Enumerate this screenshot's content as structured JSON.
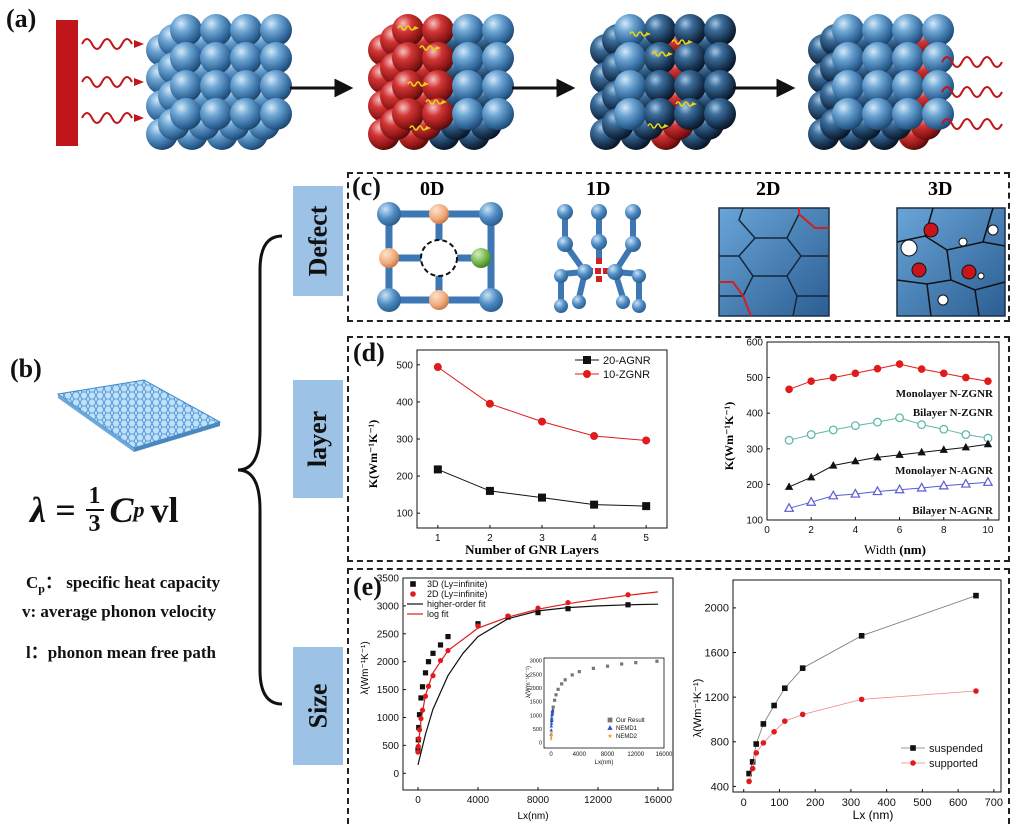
{
  "panels": {
    "a": "(a)",
    "b": "(b)",
    "c": "(c)",
    "d": "(d)",
    "e": "(e)"
  },
  "colors": {
    "heat_red": "#c0161b",
    "sphere_blue": "#3f7fb6",
    "sphere_red": "#c42a2a",
    "tag_blue": "#9cc3e6",
    "wave_yellow": "#e7d21a",
    "node_orange": "#f0a878",
    "node_green": "#6cb043"
  },
  "side_tags": {
    "defect": "Defect",
    "layer": "layer",
    "size": "Size"
  },
  "panel_b": {
    "formula_lhs": "λ =",
    "formula_num": "1",
    "formula_den": "3",
    "formula_c": "C",
    "formula_sub": "p",
    "formula_rest": "vl",
    "cp_main": "C",
    "cp_sub": "p",
    "cp_text": "： specific heat capacity",
    "v_def": "v: average phonon velocity",
    "l_def": "l：phonon mean free path"
  },
  "panel_c": {
    "labels": [
      "0D",
      "1D",
      "2D",
      "3D"
    ]
  },
  "panel_d_left": {
    "xlabel": "Number of GNR Layers",
    "ylabel": "K(Wm⁻¹K⁻¹)",
    "x_ticks": [
      "1",
      "2",
      "3",
      "4",
      "5"
    ],
    "y_ticks": [
      "100",
      "200",
      "300",
      "400",
      "500"
    ],
    "legend": [
      "20-AGNR",
      "10-ZGNR"
    ]
  },
  "panel_d_right": {
    "xlabel_main": "Width ",
    "xlabel_unit": "(nm)",
    "ylabel": "K(Wm⁻¹K⁻¹)",
    "x_ticks": [
      "0",
      "2",
      "4",
      "6",
      "8",
      "10"
    ],
    "y_ticks": [
      "100",
      "200",
      "300",
      "400",
      "500",
      "600"
    ],
    "labels": [
      "Monolayer N-ZGNR",
      "Bilayer N-ZGNR",
      "Monolayer N-AGNR",
      "Bilayer N-AGNR"
    ]
  },
  "panel_e_left": {
    "xlabel": "Lx(nm)",
    "ylabel": "λ(Wm⁻¹K⁻¹)",
    "x_ticks": [
      "0",
      "4000",
      "8000",
      "12000",
      "16000"
    ],
    "y_ticks": [
      "0",
      "500",
      "1000",
      "1500",
      "2000",
      "2500",
      "3000",
      "3500"
    ],
    "legend": [
      "3D (Ly=infinite)",
      "2D (Ly=infinite)",
      "higher-order fit",
      "log fit"
    ],
    "inset": {
      "xlabel": "Lx(nm)",
      "ylabel": "λ(Wm⁻¹K⁻¹)",
      "x_ticks": [
        "0",
        "4000",
        "8000",
        "12000",
        "16000"
      ],
      "y_ticks": [
        "0",
        "500",
        "1000",
        "1500",
        "2000",
        "2500",
        "3000"
      ],
      "legend": [
        "Our Result",
        "NEMD1",
        "NEMD2"
      ]
    }
  },
  "panel_e_right": {
    "xlabel": "Lx (nm)",
    "ylabel": "λ(Wm⁻¹K⁻¹)",
    "x_ticks": [
      "0",
      "100",
      "200",
      "300",
      "400",
      "500",
      "600",
      "700"
    ],
    "y_ticks": [
      "400",
      "800",
      "1200",
      "1600",
      "2000"
    ],
    "legend": [
      "suspended",
      "supported"
    ]
  },
  "chart_data": [
    {
      "type": "line",
      "panel": "d-left",
      "xlabel": "Number of GNR Layers",
      "ylabel": "K(Wm-1K-1)",
      "xlim": [
        0.6,
        5.4
      ],
      "ylim": [
        60,
        540
      ],
      "x": [
        1,
        2,
        3,
        4,
        5
      ],
      "series": [
        {
          "name": "20-AGNR",
          "marker": "square",
          "color": "#111111",
          "values": [
            218,
            160,
            142,
            123,
            119
          ]
        },
        {
          "name": "10-ZGNR",
          "marker": "circle",
          "color": "#e01b1b",
          "values": [
            494,
            395,
            347,
            308,
            296
          ]
        }
      ],
      "legend": "top-right"
    },
    {
      "type": "line",
      "panel": "d-right",
      "xlabel": "Width (nm)",
      "ylabel": "K(Wm-1K-1)",
      "xlim": [
        0,
        10.5
      ],
      "ylim": [
        100,
        600
      ],
      "x": [
        1,
        2,
        3,
        4,
        5,
        6,
        7,
        8,
        9,
        10
      ],
      "series": [
        {
          "name": "Monolayer N-ZGNR",
          "marker": "circle",
          "color": "#e01b1b",
          "values": [
            467,
            490,
            500,
            512,
            525,
            538,
            524,
            512,
            500,
            490
          ]
        },
        {
          "name": "Bilayer N-ZGNR",
          "marker": "circle-open",
          "color": "#5fb8a8",
          "values": [
            324,
            340,
            353,
            365,
            375,
            387,
            368,
            355,
            340,
            330
          ]
        },
        {
          "name": "Monolayer N-AGNR",
          "marker": "triangle",
          "color": "#111111",
          "values": [
            193,
            220,
            253,
            265,
            276,
            283,
            290,
            297,
            304,
            313
          ]
        },
        {
          "name": "Bilayer N-AGNR",
          "marker": "triangle-open",
          "color": "#5a5ad6",
          "values": [
            133,
            150,
            168,
            173,
            180,
            185,
            190,
            196,
            201,
            206
          ]
        }
      ]
    },
    {
      "type": "scatter",
      "panel": "e-left",
      "xlabel": "Lx(nm)",
      "ylabel": "λ(Wm-1K-1)",
      "xlim": [
        -1000,
        17000
      ],
      "ylim": [
        -300,
        3500
      ],
      "series": [
        {
          "name": "3D (Ly=infinite)",
          "marker": "square",
          "color": "#111111",
          "x": [
            0,
            20,
            50,
            100,
            200,
            300,
            500,
            700,
            1000,
            1500,
            2000,
            4000,
            6000,
            8000,
            10000,
            14000
          ],
          "y": [
            420,
            600,
            820,
            1050,
            1350,
            1550,
            1800,
            2000,
            2150,
            2300,
            2450,
            2680,
            2800,
            2880,
            2950,
            3020
          ]
        },
        {
          "name": "2D (Ly=infinite)",
          "marker": "circle",
          "color": "#e01b1b",
          "x": [
            0,
            20,
            50,
            100,
            200,
            300,
            500,
            700,
            1000,
            1500,
            2000,
            4000,
            6000,
            8000,
            10000,
            14000
          ],
          "y": [
            380,
            480,
            620,
            780,
            980,
            1130,
            1380,
            1560,
            1750,
            2020,
            2200,
            2640,
            2820,
            2960,
            3060,
            3200
          ]
        },
        {
          "name": "higher-order fit",
          "kind": "line",
          "color": "#111111",
          "x": [
            0,
            500,
            1000,
            2000,
            3000,
            4000,
            6000,
            8000,
            10000,
            12000,
            14000,
            16000
          ],
          "y": [
            150,
            700,
            1150,
            1750,
            2150,
            2450,
            2770,
            2910,
            2970,
            3000,
            3020,
            3030
          ]
        },
        {
          "name": "log fit",
          "kind": "line",
          "color": "#e01b1b",
          "x": [
            0,
            200,
            500,
            1000,
            2000,
            4000,
            6000,
            8000,
            10000,
            12000,
            14000,
            16000
          ],
          "y": [
            420,
            950,
            1400,
            1800,
            2200,
            2600,
            2800,
            2940,
            3040,
            3120,
            3190,
            3250
          ]
        }
      ],
      "legend": "top-left"
    },
    {
      "type": "scatter",
      "panel": "e-left-inset",
      "xlabel": "Lx(nm)",
      "ylabel": "λ(Wm-1K-1)",
      "xlim": [
        -1000,
        16000
      ],
      "ylim": [
        -200,
        3100
      ],
      "series": [
        {
          "name": "Our Result",
          "marker": "square",
          "color": "#777777",
          "x": [
            100,
            200,
            300,
            500,
            700,
            1000,
            1500,
            2000,
            3000,
            4000,
            6000,
            8000,
            10000,
            12000,
            15000
          ],
          "y": [
            800,
            1100,
            1300,
            1550,
            1750,
            1950,
            2150,
            2300,
            2480,
            2600,
            2720,
            2800,
            2880,
            2930,
            2980
          ]
        },
        {
          "name": "NEMD1",
          "marker": "triangle",
          "color": "#2b4fc9",
          "x": [
            10,
            20,
            40,
            60,
            80,
            100,
            130,
            160,
            200,
            250
          ],
          "y": [
            300,
            450,
            600,
            700,
            800,
            900,
            1000,
            1050,
            1150,
            1200
          ]
        },
        {
          "name": "NEMD2",
          "marker": "star",
          "color": "#f0a030",
          "x": [
            10,
            20,
            30,
            50,
            80
          ],
          "y": [
            120,
            180,
            230,
            300,
            360
          ]
        }
      ],
      "legend": "bottom-right"
    },
    {
      "type": "line",
      "panel": "e-right",
      "xlabel": "Lx (nm)",
      "ylabel": "λ(Wm-1K-1)",
      "xlim": [
        -30,
        720
      ],
      "ylim": [
        350,
        2250
      ],
      "series": [
        {
          "name": "suspended",
          "marker": "square",
          "color": "#111111",
          "x": [
            15,
            25,
            35,
            55,
            85,
            115,
            165,
            330,
            650
          ],
          "y": [
            515,
            620,
            780,
            960,
            1125,
            1280,
            1460,
            1750,
            2110
          ]
        },
        {
          "name": "supported",
          "marker": "circle",
          "color": "#e01b1b",
          "x": [
            15,
            25,
            35,
            55,
            85,
            115,
            165,
            330,
            650
          ],
          "y": [
            445,
            560,
            700,
            790,
            890,
            985,
            1045,
            1180,
            1255
          ]
        }
      ],
      "legend": "bottom-right"
    }
  ]
}
